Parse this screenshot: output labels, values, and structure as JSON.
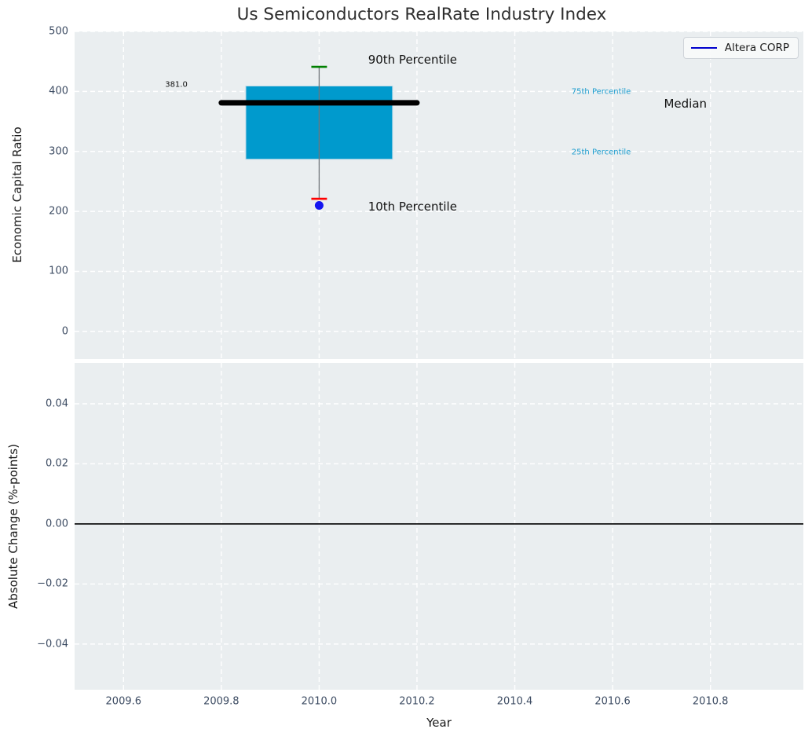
{
  "figure": {
    "title": "Us Semiconductors RealRate Industry Index",
    "background": "#ffffff",
    "axes_background": "#eaeef0",
    "grid_color": "#ffffff",
    "tick_color": "#3d4c63",
    "title_color": "#2e2e2e"
  },
  "legend": {
    "label": "Altera CORP",
    "line_color": "#0000cd",
    "position": "upper right"
  },
  "chart_data": [
    {
      "type": "boxplot",
      "title": "Us Semiconductors RealRate Industry Index",
      "xlabel": "Year",
      "ylabel": "Economic Capital Ratio",
      "xlim": [
        2009.5,
        2010.99
      ],
      "ylim": [
        -46,
        500
      ],
      "grid": true,
      "xticks": [
        {
          "v": 2009.6,
          "label": "2009.6"
        },
        {
          "v": 2009.8,
          "label": "2009.8"
        },
        {
          "v": 2010.0,
          "label": "2010.0"
        },
        {
          "v": 2010.2,
          "label": "2010.2"
        },
        {
          "v": 2010.4,
          "label": "2010.4"
        },
        {
          "v": 2010.6,
          "label": "2010.6"
        },
        {
          "v": 2010.8,
          "label": "2010.8"
        }
      ],
      "yticks": [
        {
          "v": 0,
          "label": "0"
        },
        {
          "v": 100,
          "label": "100"
        },
        {
          "v": 200,
          "label": "200"
        },
        {
          "v": 300,
          "label": "300"
        },
        {
          "v": 400,
          "label": "400"
        },
        {
          "v": 500,
          "label": "500"
        }
      ],
      "box": {
        "x": 2010.0,
        "box_left": 2009.85,
        "box_right": 2010.15,
        "median": 381.0,
        "median_label": "381.0",
        "median_line_left": 2009.8,
        "median_line_right": 2010.2,
        "q1": 287,
        "q3": 409,
        "whisker_low": 221,
        "whisker_high": 441,
        "cap_half_width": 0.016,
        "fill_color": "#009acd",
        "edge_color": "#b8d9e8",
        "median_color": "#000000",
        "whisker_color": "#70757a",
        "cap_high_color": "#008000",
        "cap_low_color": "#ff0000"
      },
      "points": [
        {
          "name": "Altera CORP",
          "x": 2010.0,
          "y": 210,
          "color": "#1414f0",
          "radius": 5.5
        }
      ],
      "annotations": [
        {
          "text": "381.0",
          "x": 2009.708,
          "y": 411,
          "color": "#111111",
          "size": 10,
          "ha": "center"
        },
        {
          "text": "90th Percentile",
          "x": 2010.1,
          "y": 453,
          "color": "#111111",
          "size": 15,
          "ha": "left"
        },
        {
          "text": "10th Percentile",
          "x": 2010.1,
          "y": 208,
          "color": "#111111",
          "size": 15,
          "ha": "left"
        },
        {
          "text": "75th Percentile",
          "x": 2010.516,
          "y": 399,
          "color": "#1b9cce",
          "size": 10,
          "ha": "left"
        },
        {
          "text": "25th Percentile",
          "x": 2010.516,
          "y": 298,
          "color": "#1b9cce",
          "size": 10,
          "ha": "left"
        },
        {
          "text": "Median",
          "x": 2010.705,
          "y": 380,
          "color": "#111111",
          "size": 15,
          "ha": "left"
        }
      ]
    },
    {
      "type": "line",
      "xlabel": "Year",
      "ylabel": "Absolute Change (%-points)",
      "xlim": [
        2009.5,
        2010.99
      ],
      "ylim": [
        -0.0552,
        0.0536
      ],
      "grid": true,
      "xticks": [
        {
          "v": 2009.6,
          "label": "2009.6"
        },
        {
          "v": 2009.8,
          "label": "2009.8"
        },
        {
          "v": 2010.0,
          "label": "2010.0"
        },
        {
          "v": 2010.2,
          "label": "2010.2"
        },
        {
          "v": 2010.4,
          "label": "2010.4"
        },
        {
          "v": 2010.6,
          "label": "2010.6"
        },
        {
          "v": 2010.8,
          "label": "2010.8"
        }
      ],
      "yticks": [
        {
          "v": 0.04,
          "label": "0.04"
        },
        {
          "v": 0.02,
          "label": "0.02"
        },
        {
          "v": 0.0,
          "label": "0.00"
        },
        {
          "v": -0.02,
          "label": "−0.02"
        },
        {
          "v": -0.04,
          "label": "−0.04"
        }
      ],
      "zero_line": {
        "y": 0.0,
        "color": "#000000",
        "width": 1.6
      },
      "series": []
    }
  ]
}
